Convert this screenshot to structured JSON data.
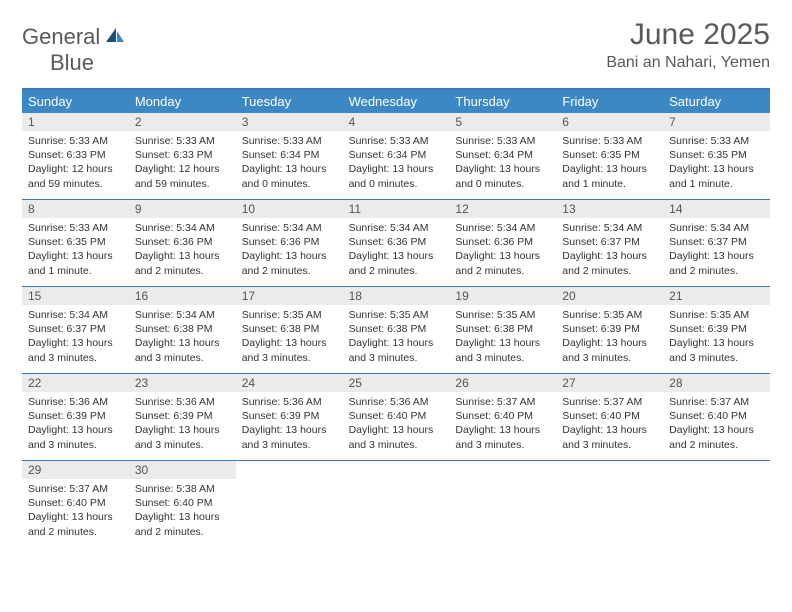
{
  "logo": {
    "text1": "General",
    "text2": "Blue"
  },
  "title": "June 2025",
  "location": "Bani an Nahari, Yemen",
  "colors": {
    "header_bg": "#3b88c4",
    "border": "#3b78b5",
    "daynum_bg": "#ebebeb",
    "text": "#333333",
    "muted": "#5a5a5a"
  },
  "day_names": [
    "Sunday",
    "Monday",
    "Tuesday",
    "Wednesday",
    "Thursday",
    "Friday",
    "Saturday"
  ],
  "weeks": [
    [
      {
        "n": "1",
        "sunrise": "5:33 AM",
        "sunset": "6:33 PM",
        "daylight": "12 hours and 59 minutes."
      },
      {
        "n": "2",
        "sunrise": "5:33 AM",
        "sunset": "6:33 PM",
        "daylight": "12 hours and 59 minutes."
      },
      {
        "n": "3",
        "sunrise": "5:33 AM",
        "sunset": "6:34 PM",
        "daylight": "13 hours and 0 minutes."
      },
      {
        "n": "4",
        "sunrise": "5:33 AM",
        "sunset": "6:34 PM",
        "daylight": "13 hours and 0 minutes."
      },
      {
        "n": "5",
        "sunrise": "5:33 AM",
        "sunset": "6:34 PM",
        "daylight": "13 hours and 0 minutes."
      },
      {
        "n": "6",
        "sunrise": "5:33 AM",
        "sunset": "6:35 PM",
        "daylight": "13 hours and 1 minute."
      },
      {
        "n": "7",
        "sunrise": "5:33 AM",
        "sunset": "6:35 PM",
        "daylight": "13 hours and 1 minute."
      }
    ],
    [
      {
        "n": "8",
        "sunrise": "5:33 AM",
        "sunset": "6:35 PM",
        "daylight": "13 hours and 1 minute."
      },
      {
        "n": "9",
        "sunrise": "5:34 AM",
        "sunset": "6:36 PM",
        "daylight": "13 hours and 2 minutes."
      },
      {
        "n": "10",
        "sunrise": "5:34 AM",
        "sunset": "6:36 PM",
        "daylight": "13 hours and 2 minutes."
      },
      {
        "n": "11",
        "sunrise": "5:34 AM",
        "sunset": "6:36 PM",
        "daylight": "13 hours and 2 minutes."
      },
      {
        "n": "12",
        "sunrise": "5:34 AM",
        "sunset": "6:36 PM",
        "daylight": "13 hours and 2 minutes."
      },
      {
        "n": "13",
        "sunrise": "5:34 AM",
        "sunset": "6:37 PM",
        "daylight": "13 hours and 2 minutes."
      },
      {
        "n": "14",
        "sunrise": "5:34 AM",
        "sunset": "6:37 PM",
        "daylight": "13 hours and 2 minutes."
      }
    ],
    [
      {
        "n": "15",
        "sunrise": "5:34 AM",
        "sunset": "6:37 PM",
        "daylight": "13 hours and 3 minutes."
      },
      {
        "n": "16",
        "sunrise": "5:34 AM",
        "sunset": "6:38 PM",
        "daylight": "13 hours and 3 minutes."
      },
      {
        "n": "17",
        "sunrise": "5:35 AM",
        "sunset": "6:38 PM",
        "daylight": "13 hours and 3 minutes."
      },
      {
        "n": "18",
        "sunrise": "5:35 AM",
        "sunset": "6:38 PM",
        "daylight": "13 hours and 3 minutes."
      },
      {
        "n": "19",
        "sunrise": "5:35 AM",
        "sunset": "6:38 PM",
        "daylight": "13 hours and 3 minutes."
      },
      {
        "n": "20",
        "sunrise": "5:35 AM",
        "sunset": "6:39 PM",
        "daylight": "13 hours and 3 minutes."
      },
      {
        "n": "21",
        "sunrise": "5:35 AM",
        "sunset": "6:39 PM",
        "daylight": "13 hours and 3 minutes."
      }
    ],
    [
      {
        "n": "22",
        "sunrise": "5:36 AM",
        "sunset": "6:39 PM",
        "daylight": "13 hours and 3 minutes."
      },
      {
        "n": "23",
        "sunrise": "5:36 AM",
        "sunset": "6:39 PM",
        "daylight": "13 hours and 3 minutes."
      },
      {
        "n": "24",
        "sunrise": "5:36 AM",
        "sunset": "6:39 PM",
        "daylight": "13 hours and 3 minutes."
      },
      {
        "n": "25",
        "sunrise": "5:36 AM",
        "sunset": "6:40 PM",
        "daylight": "13 hours and 3 minutes."
      },
      {
        "n": "26",
        "sunrise": "5:37 AM",
        "sunset": "6:40 PM",
        "daylight": "13 hours and 3 minutes."
      },
      {
        "n": "27",
        "sunrise": "5:37 AM",
        "sunset": "6:40 PM",
        "daylight": "13 hours and 3 minutes."
      },
      {
        "n": "28",
        "sunrise": "5:37 AM",
        "sunset": "6:40 PM",
        "daylight": "13 hours and 2 minutes."
      }
    ],
    [
      {
        "n": "29",
        "sunrise": "5:37 AM",
        "sunset": "6:40 PM",
        "daylight": "13 hours and 2 minutes."
      },
      {
        "n": "30",
        "sunrise": "5:38 AM",
        "sunset": "6:40 PM",
        "daylight": "13 hours and 2 minutes."
      },
      null,
      null,
      null,
      null,
      null
    ]
  ],
  "labels": {
    "sunrise": "Sunrise:",
    "sunset": "Sunset:",
    "daylight": "Daylight:"
  }
}
